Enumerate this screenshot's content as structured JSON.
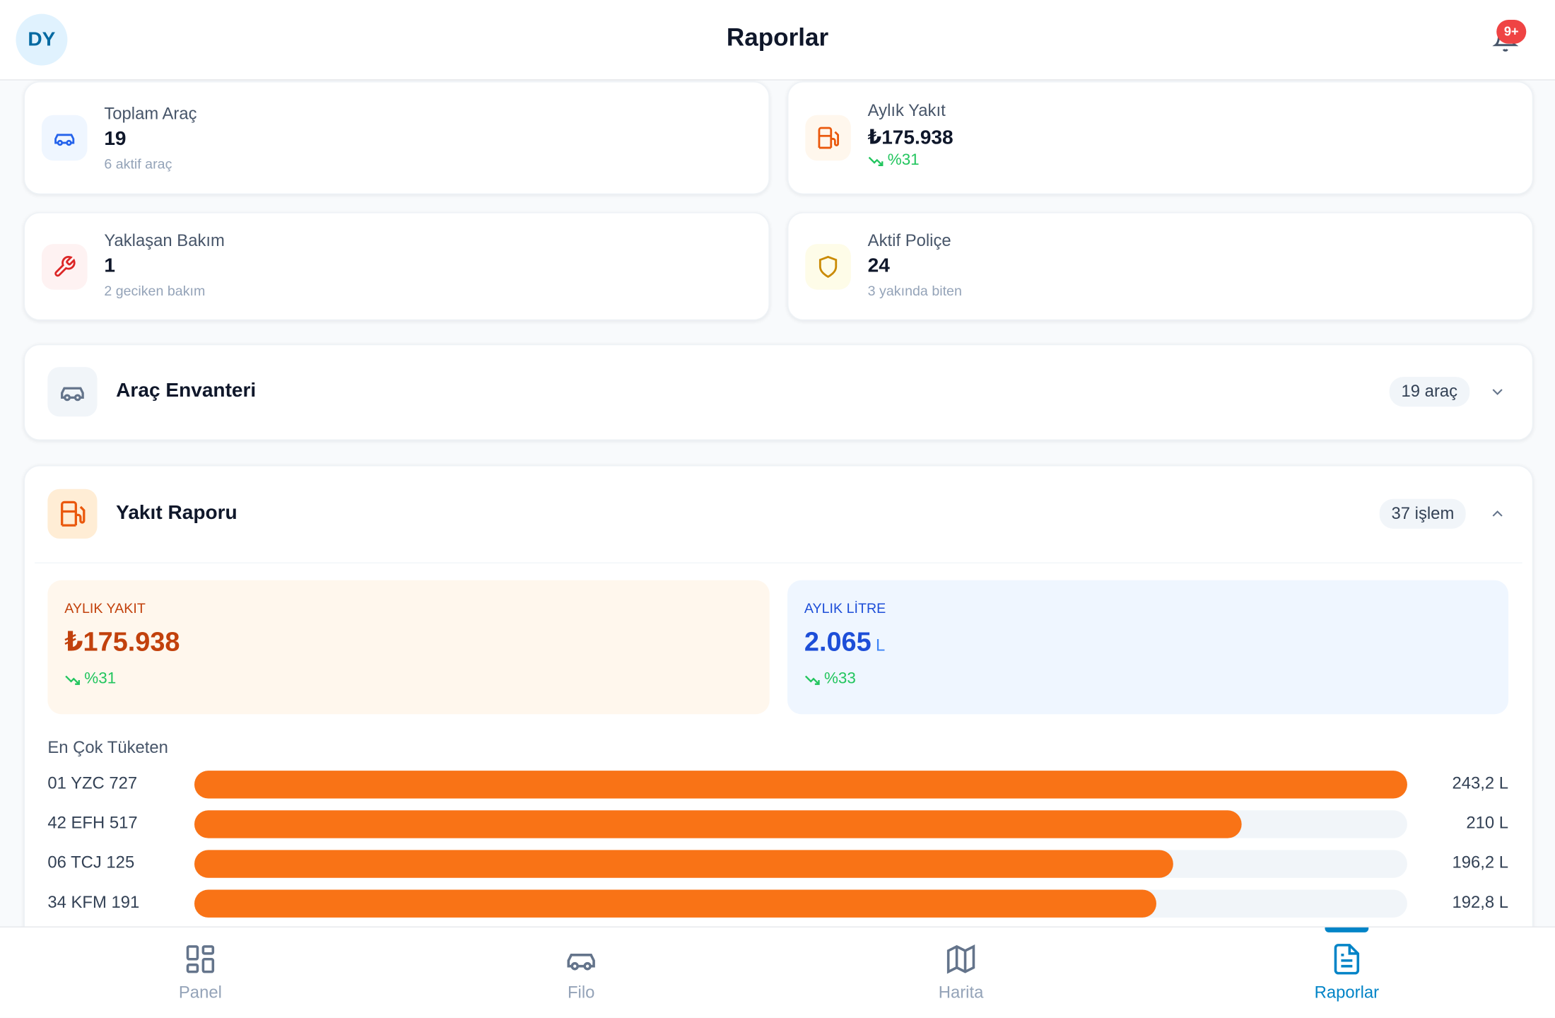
{
  "header": {
    "avatar": "DY",
    "title": "Raporlar",
    "badge": "9+"
  },
  "stats": [
    {
      "label": "Toplam Araç",
      "value": "19",
      "sub": "6 aktif araç"
    },
    {
      "label": "Aylık Yakıt",
      "value": "₺175.938",
      "sub": "%31"
    },
    {
      "label": "Yaklaşan Bakım",
      "value": "1",
      "sub": "2 geciken bakım"
    },
    {
      "label": "Aktif Poliçe",
      "value": "24",
      "sub": "3 yakında biten"
    }
  ],
  "inventory": {
    "title": "Araç Envanteri",
    "badge": "19 araç"
  },
  "fuel": {
    "title": "Yakıt Raporu",
    "badge": "37 işlem",
    "monthly_fuel": {
      "label": "AYLIK YAKIT",
      "value": "₺175.938",
      "change": "%31"
    },
    "monthly_litre": {
      "label": "AYLIK LİTRE",
      "value": "2.065",
      "unit": "L",
      "change": "%33"
    },
    "top_consumers": {
      "title": "En Çok Tüketen",
      "rows": [
        {
          "plate": "01 YZC 727",
          "value": 243.2,
          "label": "243,2 L"
        },
        {
          "plate": "42 EFH 517",
          "value": 210,
          "label": "210 L"
        },
        {
          "plate": "06 TCJ 125",
          "value": 196.2,
          "label": "196,2 L"
        },
        {
          "plate": "34 KFM 191",
          "value": 192.8,
          "label": "192,8 L"
        }
      ]
    }
  },
  "nav": [
    {
      "label": "Panel",
      "active": false
    },
    {
      "label": "Filo",
      "active": false
    },
    {
      "label": "Harita",
      "active": false
    },
    {
      "label": "Raporlar",
      "active": true
    }
  ]
}
